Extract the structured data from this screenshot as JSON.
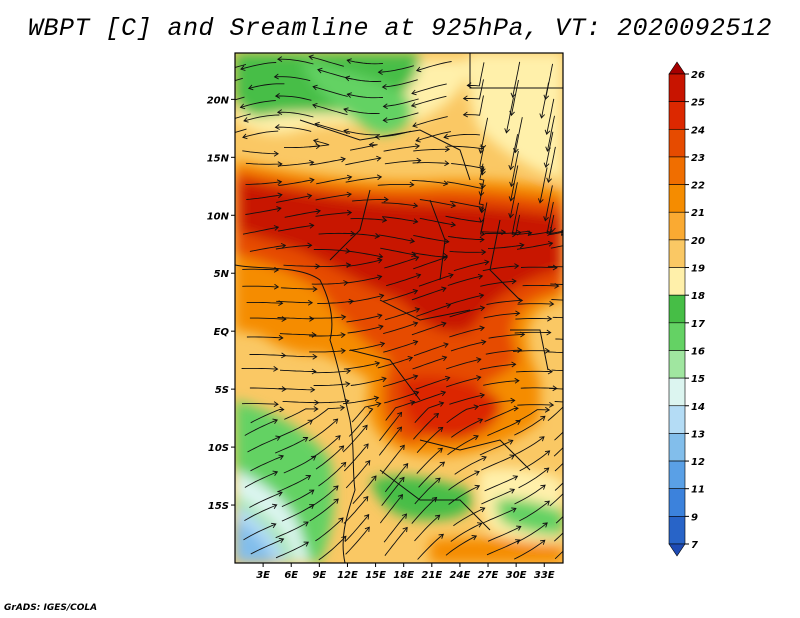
{
  "title": "WBPT [C] and Sreamline at 925hPa, VT: 2020092512",
  "credit": "GrADS: IGES/COLA",
  "map": {
    "lon_range": [
      0,
      35
    ],
    "lat_range": [
      -20,
      24
    ],
    "lon_ticks": [
      "3E",
      "6E",
      "9E",
      "12E",
      "15E",
      "18E",
      "21E",
      "24E",
      "27E",
      "30E",
      "33E"
    ],
    "lat_ticks": [
      "20N",
      "15N",
      "10N",
      "5N",
      "EQ",
      "5S",
      "10S",
      "15S"
    ]
  },
  "colorbar": {
    "labels": [
      "26",
      "25",
      "24",
      "23",
      "22",
      "21",
      "20",
      "19",
      "18",
      "17",
      "16",
      "15",
      "14",
      "13",
      "12",
      "11",
      "9",
      "7"
    ],
    "colors": [
      "#a50000",
      "#c81400",
      "#dc2800",
      "#e64b00",
      "#f06e00",
      "#f58c00",
      "#faaa32",
      "#fac864",
      "#fff0aa",
      "#46be46",
      "#64d264",
      "#a0e6a0",
      "#dcf5f0",
      "#b4dcf5",
      "#82beeb",
      "#5aa0e6",
      "#3c82dc",
      "#2864c8",
      "#1e4bb4"
    ]
  }
}
